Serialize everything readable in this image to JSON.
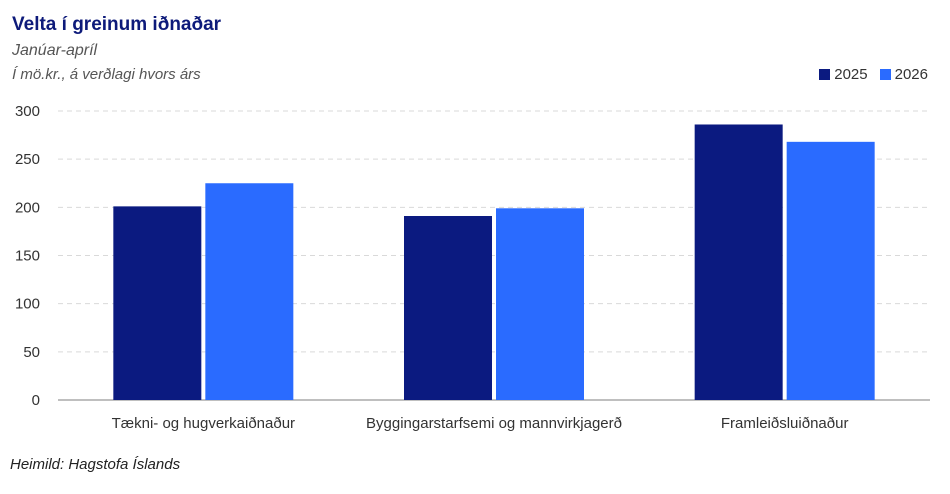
{
  "title": "Velta í greinum iðnaðar",
  "subtitle": "Janúar-apríl",
  "unit_note": "Í mö.kr., á verðlagi hvors árs",
  "source": "Heimild:  Hagstofa Íslands",
  "colors": {
    "series_2025": "#0b1a80",
    "series_2026": "#2a6bff",
    "grid": "#d9d9d9",
    "axis": "#7f7f7f"
  },
  "chart_data": {
    "type": "bar",
    "categories": [
      "Tækni- og hugverkaiðnaður",
      "Byggingarstarfsemi og mannvirkjagerð",
      "Framleiðsluiðnaður"
    ],
    "series": [
      {
        "name": "2025",
        "values": [
          201,
          191,
          286
        ]
      },
      {
        "name": "2026",
        "values": [
          225,
          199,
          268
        ]
      }
    ],
    "yticks": [
      0,
      50,
      100,
      150,
      200,
      250,
      300
    ],
    "ylim": [
      0,
      300
    ],
    "grid": true,
    "legend_position": "top-right"
  }
}
